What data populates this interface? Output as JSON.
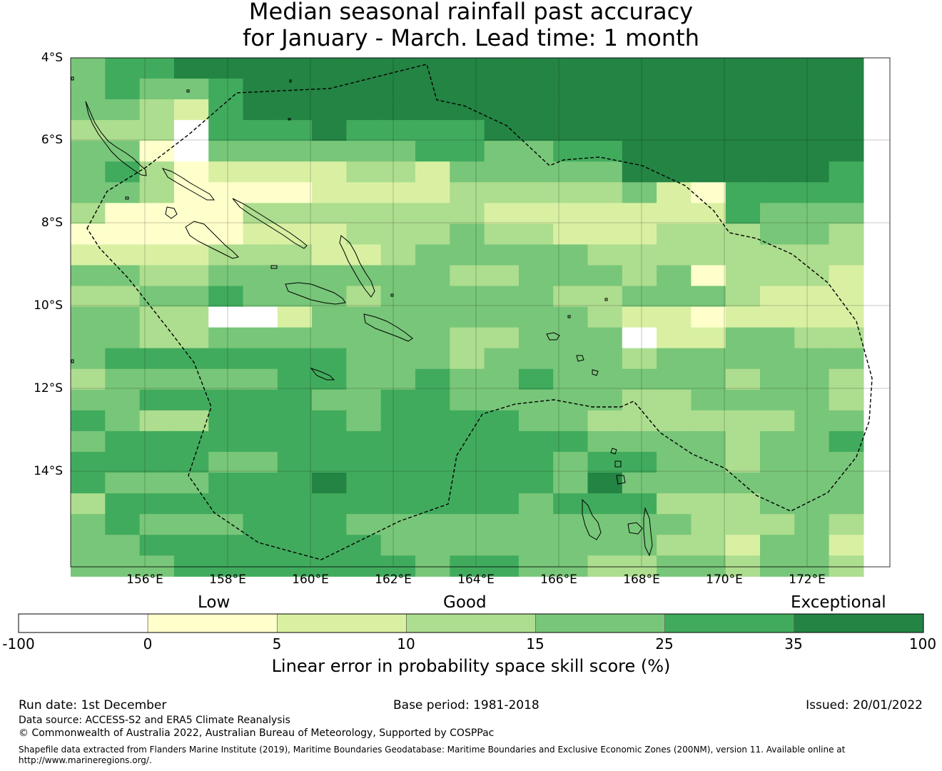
{
  "title": {
    "line1": "Median seasonal rainfall past accuracy",
    "line2": "for January - March. Lead time: 1 month"
  },
  "axes": {
    "lat_labels": [
      "4°S",
      "6°S",
      "8°S",
      "10°S",
      "12°S",
      "14°S"
    ],
    "lon_labels": [
      "156°E",
      "158°E",
      "160°E",
      "162°E",
      "164°E",
      "166°E",
      "168°E",
      "170°E",
      "172°E"
    ]
  },
  "legend": {
    "categories": [
      "Low",
      "Good",
      "Exceptional"
    ],
    "ticks": [
      "-100",
      "0",
      "5",
      "10",
      "15",
      "25",
      "35",
      "100"
    ],
    "colors": [
      "#ffffff",
      "#ffffcc",
      "#d9f0a3",
      "#addd8e",
      "#78c679",
      "#41ab5d",
      "#238443"
    ],
    "label": "Linear error in probability space skill score (%)"
  },
  "footer": {
    "run_date": "Run date: 1st December",
    "base_period": "Base period: 1981-2018",
    "issued": "Issued: 20/01/2022",
    "data_source": "Data source: ACCESS-S2 and ERA5 Climate Reanalysis",
    "copyright": "© Commonwealth of Australia 2022, Australian Bureau of Meteorology, Supported by COSPPac",
    "shapefile_line1": "Shapefile data extracted from Flanders Marine Institute (2019), Maritime Boundaries Geodatabase: Maritime Boundaries and Exclusive Economic Zones (200NM), version 11. Available online at",
    "shapefile_line2": "http://www.marineregions.org/."
  },
  "map": {
    "extent": {
      "lon_min": 154.2,
      "lon_max": 174.0,
      "lat_north": -4.0,
      "lat_south": -16.3
    },
    "grid_rows": [
      "45566666666666666666666",
      "45445666666666666666666",
      "44325666666666666666666",
      "33305556555566666666666",
      "44104444445544556666666",
      "45312222332444446666665",
      "44311112222333334215555",
      "31111333333322222225444",
      "11111222333433222333443",
      "22223332234444433333333",
      "44334444444334443413332",
      "33445444344444334443222",
      "44330024444444432212222",
      "44334444444334440224433",
      "45555555444344443444444",
      "34444455445445444443443",
      "44555554455444443344443",
      "54335555455554433333344",
      "45555555555555544443445",
      "55554455555555455443444",
      "54445556555555464444444",
      "35555555555554555333444",
      "45444555444444444433343",
      "44555555544444444332442",
      "44455555554554433443443"
    ],
    "grid_rows_note": "",
    "tiles": []
  }
}
